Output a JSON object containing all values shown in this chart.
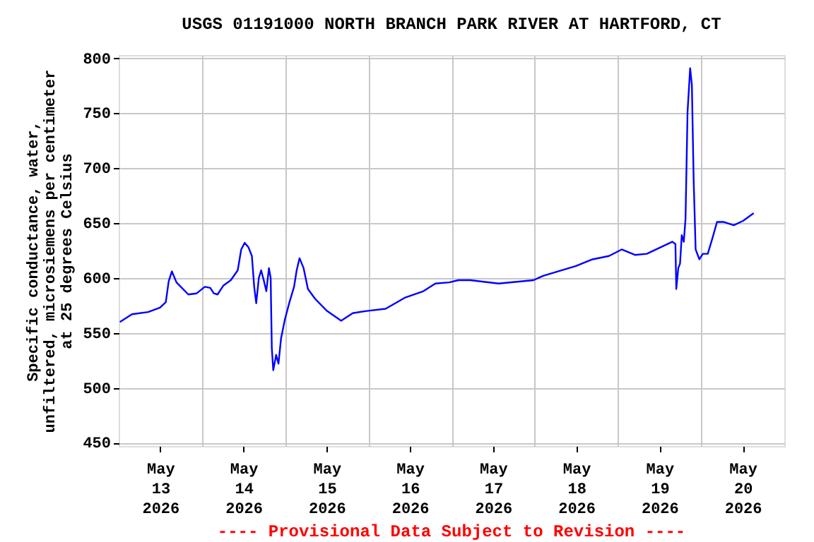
{
  "chart_data": {
    "type": "line",
    "title": "USGS 01191000 NORTH BRANCH PARK RIVER AT HARTFORD, CT",
    "ylabel": "Specific conductance, water,\nunfiltered, microsiemens per centimeter\nat 25 degrees Celsius",
    "annotations": [
      "---- Provisional Data Subject to Revision ----"
    ],
    "x": [
      "2026-05-13T00:20",
      "2026-05-13T03:50",
      "2026-05-13T08:30",
      "2026-05-13T11:55",
      "2026-05-13T13:35",
      "2026-05-13T14:25",
      "2026-05-13T15:20",
      "2026-05-13T16:40",
      "2026-05-13T20:05",
      "2026-05-13T22:30",
      "2026-05-14T00:50",
      "2026-05-14T02:25",
      "2026-05-14T03:25",
      "2026-05-14T04:30",
      "2026-05-14T06:10",
      "2026-05-14T08:20",
      "2026-05-14T10:20",
      "2026-05-14T11:20",
      "2026-05-14T12:20",
      "2026-05-14T13:25",
      "2026-05-14T14:25",
      "2026-05-14T15:05",
      "2026-05-14T15:40",
      "2026-05-14T16:25",
      "2026-05-14T17:05",
      "2026-05-14T17:50",
      "2026-05-14T18:35",
      "2026-05-14T19:20",
      "2026-05-14T19:50",
      "2026-05-14T20:10",
      "2026-05-14T20:35",
      "2026-05-14T21:25",
      "2026-05-14T22:05",
      "2026-05-14T22:50",
      "2026-05-14T23:55",
      "2026-05-15T01:10",
      "2026-05-15T02:35",
      "2026-05-15T03:20",
      "2026-05-15T04:10",
      "2026-05-15T05:20",
      "2026-05-15T06:35",
      "2026-05-15T08:40",
      "2026-05-15T12:05",
      "2026-05-15T16:10",
      "2026-05-15T19:30",
      "2026-05-15T23:35",
      "2026-05-16T05:00",
      "2026-05-16T10:30",
      "2026-05-16T15:55",
      "2026-05-16T19:20",
      "2026-05-16T23:20",
      "2026-05-17T02:00",
      "2026-05-17T05:25",
      "2026-05-17T13:35",
      "2026-05-17T23:40",
      "2026-05-18T02:25",
      "2026-05-18T11:55",
      "2026-05-18T16:40",
      "2026-05-18T21:25",
      "2026-05-19T01:05",
      "2026-05-19T04:55",
      "2026-05-19T08:20",
      "2026-05-19T11:40",
      "2026-05-19T15:40",
      "2026-05-19T16:35",
      "2026-05-19T16:50",
      "2026-05-19T17:25",
      "2026-05-19T17:55",
      "2026-05-19T18:25",
      "2026-05-19T19:00",
      "2026-05-19T19:30",
      "2026-05-19T20:05",
      "2026-05-19T20:50",
      "2026-05-19T21:20",
      "2026-05-19T21:50",
      "2026-05-19T22:25",
      "2026-05-19T23:30",
      "2026-05-20T00:30",
      "2026-05-20T01:55",
      "2026-05-20T03:20",
      "2026-05-20T04:35",
      "2026-05-20T06:35",
      "2026-05-20T09:25",
      "2026-05-20T12:05",
      "2026-05-20T15:10"
    ],
    "series": [
      {
        "color": "#0000ff",
        "values": [
          560,
          567,
          569,
          573,
          578,
          597,
          606,
          596,
          585,
          586,
          592,
          591,
          586,
          585,
          593,
          598,
          607,
          626,
          632,
          628,
          620,
          592,
          577,
          600,
          607,
          598,
          588,
          609,
          600,
          536,
          516,
          530,
          522,
          545,
          562,
          577,
          592,
          607,
          618,
          609,
          590,
          581,
          570,
          561,
          568,
          570,
          572,
          582,
          588,
          595,
          596,
          598,
          598,
          595,
          598,
          602,
          611,
          617,
          620,
          626,
          621,
          622,
          627,
          633,
          631,
          590,
          609,
          613,
          639,
          633,
          654,
          751,
          791,
          776,
          691,
          626,
          617,
          622,
          622,
          637,
          651,
          651,
          648,
          652,
          659
        ]
      }
    ],
    "xlim": [
      "2026-05-13T00:00",
      "2026-05-21T00:00"
    ],
    "xticks": [
      {
        "value": "2026-05-13T12:00",
        "label": "May\n13\n2026"
      },
      {
        "value": "2026-05-14T00:00",
        "label": null
      },
      {
        "value": "2026-05-14T12:00",
        "label": "May\n14\n2026"
      },
      {
        "value": "2026-05-15T00:00",
        "label": null
      },
      {
        "value": "2026-05-15T12:00",
        "label": "May\n15\n2026"
      },
      {
        "value": "2026-05-16T00:00",
        "label": null
      },
      {
        "value": "2026-05-16T12:00",
        "label": "May\n16\n2026"
      },
      {
        "value": "2026-05-17T00:00",
        "label": null
      },
      {
        "value": "2026-05-17T12:00",
        "label": "May\n17\n2026"
      },
      {
        "value": "2026-05-18T00:00",
        "label": null
      },
      {
        "value": "2026-05-18T12:00",
        "label": "May\n18\n2026"
      },
      {
        "value": "2026-05-19T00:00",
        "label": null
      },
      {
        "value": "2026-05-19T12:00",
        "label": "May\n19\n2026"
      },
      {
        "value": "2026-05-20T00:00",
        "label": null
      },
      {
        "value": "2026-05-20T12:00",
        "label": "May\n20\n2026"
      }
    ],
    "ylim": [
      447,
      803
    ],
    "yticks": [
      450,
      500,
      550,
      600,
      650,
      700,
      750,
      800
    ],
    "grid": true,
    "line_style": "solid",
    "marker": "none"
  }
}
